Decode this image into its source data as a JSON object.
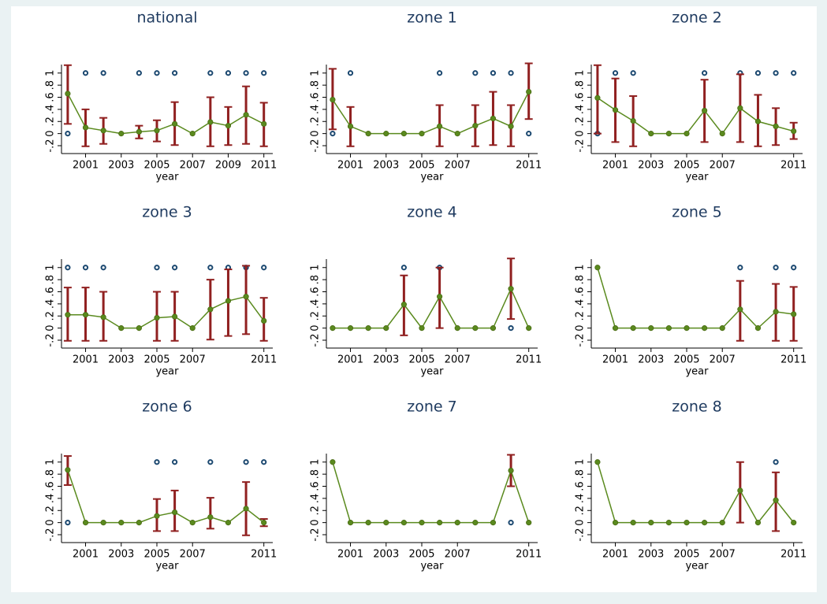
{
  "chart_data": [
    {
      "type": "line",
      "title": "national",
      "x_label": "year",
      "x": [
        2000,
        2001,
        2002,
        2003,
        2004,
        2005,
        2006,
        2007,
        2008,
        2009,
        2010,
        2011
      ],
      "values": [
        0.66,
        0.1,
        0.05,
        0,
        0.03,
        0.05,
        0.16,
        0,
        0.19,
        0.13,
        0.31,
        0.16
      ],
      "ci_lower": [
        0.16,
        -0.21,
        -0.17,
        null,
        -0.08,
        -0.13,
        -0.19,
        null,
        -0.21,
        -0.19,
        -0.17,
        -0.21
      ],
      "ci_upper": [
        1.13,
        0.4,
        0.26,
        null,
        0.13,
        0.22,
        0.52,
        null,
        0.6,
        0.44,
        0.78,
        0.51
      ],
      "points": {
        "x": [
          2000,
          2001,
          2002,
          2004,
          2005,
          2006,
          2008,
          2009,
          2010,
          2011
        ],
        "values": [
          0,
          1,
          1,
          1,
          1,
          1,
          1,
          1,
          1,
          1
        ]
      },
      "xlim": [
        1999.65,
        2011.5
      ],
      "ylim": [
        -0.33,
        1.14
      ],
      "xticks": [
        2001,
        2003,
        2005,
        2007,
        2009,
        2011
      ],
      "yticks": [
        {
          "value": -0.2,
          "label": "-.2"
        },
        0,
        {
          "value": 0.2,
          "label": ".2"
        },
        {
          "value": 0.4,
          "label": ".4"
        },
        {
          "value": 0.6,
          "label": ".6"
        },
        {
          "value": 0.8,
          "label": ".8"
        },
        1
      ],
      "line_color": "#5a8a1e",
      "ci_color": "#902020",
      "point_color": "#1a476f"
    },
    {
      "type": "line",
      "title": "zone 1",
      "x_label": "year",
      "x": [
        2000,
        2001,
        2002,
        2003,
        2004,
        2005,
        2006,
        2007,
        2008,
        2009,
        2010,
        2011
      ],
      "values": [
        0.56,
        0.12,
        0,
        0,
        0,
        0,
        0.12,
        0,
        0.13,
        0.25,
        0.12,
        0.69
      ],
      "ci_lower": [
        0.07,
        -0.21,
        null,
        null,
        null,
        null,
        -0.21,
        null,
        -0.21,
        -0.19,
        -0.21,
        0.24
      ],
      "ci_upper": [
        1.07,
        0.44,
        null,
        null,
        null,
        null,
        0.47,
        null,
        0.47,
        0.69,
        0.47,
        1.16
      ],
      "points": {
        "x": [
          2000,
          2001,
          2006,
          2008,
          2009,
          2010,
          2011
        ],
        "values": [
          0,
          1,
          1,
          1,
          1,
          1,
          0
        ]
      },
      "xlim": [
        1999.65,
        2011.5
      ],
      "ylim": [
        -0.33,
        1.14
      ],
      "xticks": [
        2001,
        2003,
        2005,
        2007,
        2011
      ],
      "yticks": [
        {
          "value": -0.2,
          "label": "-.2"
        },
        0,
        {
          "value": 0.2,
          "label": ".2"
        },
        {
          "value": 0.4,
          "label": ".4"
        },
        {
          "value": 0.6,
          "label": ".6"
        },
        {
          "value": 0.8,
          "label": ".8"
        },
        1
      ],
      "line_color": "#5a8a1e",
      "ci_color": "#902020",
      "point_color": "#1a476f"
    },
    {
      "type": "line",
      "title": "zone 2",
      "x_label": "year",
      "x": [
        2000,
        2001,
        2002,
        2003,
        2004,
        2005,
        2006,
        2007,
        2008,
        2009,
        2010,
        2011
      ],
      "values": [
        0.59,
        0.39,
        0.21,
        0,
        0,
        0,
        0.38,
        0,
        0.42,
        0.2,
        0.12,
        0.04
      ],
      "ci_lower": [
        0,
        -0.14,
        -0.21,
        null,
        null,
        null,
        -0.14,
        null,
        -0.14,
        -0.21,
        -0.19,
        -0.09
      ],
      "ci_upper": [
        1.13,
        0.91,
        0.62,
        null,
        null,
        null,
        0.89,
        null,
        0.98,
        0.64,
        0.42,
        0.18
      ],
      "points": {
        "x": [
          2000,
          2001,
          2002,
          2006,
          2008,
          2009,
          2010,
          2011
        ],
        "values": [
          0,
          1,
          1,
          1,
          1,
          1,
          1,
          1
        ]
      },
      "xlim": [
        1999.65,
        2011.5
      ],
      "ylim": [
        -0.33,
        1.14
      ],
      "xticks": [
        2001,
        2003,
        2005,
        2007,
        2011
      ],
      "yticks": [
        {
          "value": -0.2,
          "label": "-.2"
        },
        0,
        {
          "value": 0.2,
          "label": ".2"
        },
        {
          "value": 0.4,
          "label": ".4"
        },
        {
          "value": 0.6,
          "label": ".6"
        },
        {
          "value": 0.8,
          "label": ".8"
        },
        1
      ],
      "line_color": "#5a8a1e",
      "ci_color": "#902020",
      "point_color": "#1a476f"
    },
    {
      "type": "line",
      "title": "zone 3",
      "x_label": "year",
      "x": [
        2000,
        2001,
        2002,
        2003,
        2004,
        2005,
        2006,
        2007,
        2008,
        2009,
        2010,
        2011
      ],
      "values": [
        0.22,
        0.22,
        0.18,
        0,
        0,
        0.17,
        0.19,
        0,
        0.31,
        0.45,
        0.52,
        0.12
      ],
      "ci_lower": [
        -0.21,
        -0.21,
        -0.21,
        null,
        null,
        -0.21,
        -0.21,
        null,
        -0.19,
        -0.13,
        -0.1,
        -0.21
      ],
      "ci_upper": [
        0.67,
        0.67,
        0.6,
        null,
        null,
        0.6,
        0.6,
        null,
        0.8,
        0.97,
        1.03,
        0.5
      ],
      "points": {
        "x": [
          2000,
          2001,
          2002,
          2005,
          2006,
          2008,
          2009,
          2010,
          2011
        ],
        "values": [
          1,
          1,
          1,
          1,
          1,
          1,
          1,
          1,
          1
        ]
      },
      "xlim": [
        1999.65,
        2011.5
      ],
      "ylim": [
        -0.33,
        1.14
      ],
      "xticks": [
        2001,
        2003,
        2005,
        2007,
        2011
      ],
      "yticks": [
        {
          "value": -0.2,
          "label": "-.2"
        },
        0,
        {
          "value": 0.2,
          "label": ".2"
        },
        {
          "value": 0.4,
          "label": ".4"
        },
        {
          "value": 0.6,
          "label": ".6"
        },
        {
          "value": 0.8,
          "label": ".8"
        },
        1
      ],
      "line_color": "#5a8a1e",
      "ci_color": "#902020",
      "point_color": "#1a476f"
    },
    {
      "type": "line",
      "title": "zone 4",
      "x_label": "year",
      "x": [
        2000,
        2001,
        2002,
        2003,
        2004,
        2005,
        2006,
        2007,
        2008,
        2009,
        2010,
        2011
      ],
      "values": [
        0,
        0,
        0,
        0,
        0.39,
        0,
        0.52,
        0,
        0,
        0,
        0.65,
        0
      ],
      "ci_lower": [
        null,
        null,
        null,
        null,
        -0.12,
        null,
        0,
        null,
        null,
        null,
        0.15,
        null
      ],
      "ci_upper": [
        null,
        null,
        null,
        null,
        0.87,
        null,
        1.0,
        null,
        null,
        null,
        1.15,
        null
      ],
      "points": {
        "x": [
          2004,
          2006,
          2010
        ],
        "values": [
          1,
          1,
          0
        ]
      },
      "xlim": [
        1999.65,
        2011.5
      ],
      "ylim": [
        -0.33,
        1.14
      ],
      "xticks": [
        2001,
        2003,
        2005,
        2007,
        2011
      ],
      "yticks": [
        {
          "value": -0.2,
          "label": "-.2"
        },
        0,
        {
          "value": 0.2,
          "label": ".2"
        },
        {
          "value": 0.4,
          "label": ".4"
        },
        {
          "value": 0.6,
          "label": ".6"
        },
        {
          "value": 0.8,
          "label": ".8"
        },
        1
      ],
      "line_color": "#5a8a1e",
      "ci_color": "#902020",
      "point_color": "#1a476f"
    },
    {
      "type": "line",
      "title": "zone 5",
      "x_label": "year",
      "x": [
        2000,
        2001,
        2002,
        2003,
        2004,
        2005,
        2006,
        2007,
        2008,
        2009,
        2010,
        2011
      ],
      "values": [
        1,
        0,
        0,
        0,
        0,
        0,
        0,
        0,
        0.31,
        0,
        0.27,
        0.23
      ],
      "ci_lower": [
        null,
        null,
        null,
        null,
        null,
        null,
        null,
        null,
        -0.21,
        null,
        -0.21,
        -0.21
      ],
      "ci_upper": [
        null,
        null,
        null,
        null,
        null,
        null,
        null,
        null,
        0.78,
        null,
        0.73,
        0.68
      ],
      "points": {
        "x": [
          2008,
          2010,
          2011
        ],
        "values": [
          1,
          1,
          1
        ]
      },
      "xlim": [
        1999.65,
        2011.5
      ],
      "ylim": [
        -0.33,
        1.14
      ],
      "xticks": [
        2001,
        2003,
        2005,
        2007,
        2011
      ],
      "yticks": [
        {
          "value": -0.2,
          "label": "-.2"
        },
        0,
        {
          "value": 0.2,
          "label": ".2"
        },
        {
          "value": 0.4,
          "label": ".4"
        },
        {
          "value": 0.6,
          "label": ".6"
        },
        {
          "value": 0.8,
          "label": ".8"
        },
        1
      ],
      "line_color": "#5a8a1e",
      "ci_color": "#902020",
      "point_color": "#1a476f"
    },
    {
      "type": "line",
      "title": "zone 6",
      "x_label": "year",
      "x": [
        2000,
        2001,
        2002,
        2003,
        2004,
        2005,
        2006,
        2007,
        2008,
        2009,
        2010,
        2011
      ],
      "values": [
        0.87,
        0,
        0,
        0,
        0,
        0.11,
        0.17,
        0,
        0.09,
        0,
        0.23,
        0
      ],
      "ci_lower": [
        0.62,
        null,
        null,
        null,
        null,
        -0.14,
        -0.14,
        null,
        -0.1,
        null,
        -0.21,
        -0.06
      ],
      "ci_upper": [
        1.1,
        null,
        null,
        null,
        null,
        0.39,
        0.53,
        null,
        0.41,
        null,
        0.67,
        0.06
      ],
      "points": {
        "x": [
          2000,
          2005,
          2006,
          2008,
          2010,
          2011
        ],
        "values": [
          0,
          1,
          1,
          1,
          1,
          1
        ]
      },
      "xlim": [
        1999.65,
        2011.5
      ],
      "ylim": [
        -0.33,
        1.14
      ],
      "xticks": [
        2001,
        2003,
        2005,
        2007,
        2011
      ],
      "yticks": [
        {
          "value": -0.2,
          "label": "-.2"
        },
        0,
        {
          "value": 0.2,
          "label": ".2"
        },
        {
          "value": 0.4,
          "label": ".4"
        },
        {
          "value": 0.6,
          "label": ".6"
        },
        {
          "value": 0.8,
          "label": ".8"
        },
        1
      ],
      "line_color": "#5a8a1e",
      "ci_color": "#902020",
      "point_color": "#1a476f"
    },
    {
      "type": "line",
      "title": "zone 7",
      "x_label": "year",
      "x": [
        2000,
        2001,
        2002,
        2003,
        2004,
        2005,
        2006,
        2007,
        2008,
        2009,
        2010,
        2011
      ],
      "values": [
        1,
        0,
        0,
        0,
        0,
        0,
        0,
        0,
        0,
        0,
        0.86,
        0
      ],
      "ci_lower": [
        null,
        null,
        null,
        null,
        null,
        null,
        null,
        null,
        null,
        null,
        0.6,
        null
      ],
      "ci_upper": [
        null,
        null,
        null,
        null,
        null,
        null,
        null,
        null,
        null,
        null,
        1.12,
        null
      ],
      "points": {
        "x": [
          2010
        ],
        "values": [
          0
        ]
      },
      "xlim": [
        1999.65,
        2011.5
      ],
      "ylim": [
        -0.33,
        1.14
      ],
      "xticks": [
        2001,
        2003,
        2005,
        2007,
        2011
      ],
      "yticks": [
        {
          "value": -0.2,
          "label": "-.2"
        },
        0,
        {
          "value": 0.2,
          "label": ".2"
        },
        {
          "value": 0.4,
          "label": ".4"
        },
        {
          "value": 0.6,
          "label": ".6"
        },
        {
          "value": 0.8,
          "label": ".8"
        },
        1
      ],
      "line_color": "#5a8a1e",
      "ci_color": "#902020",
      "point_color": "#1a476f"
    },
    {
      "type": "line",
      "title": "zone 8",
      "x_label": "year",
      "x": [
        2000,
        2001,
        2002,
        2003,
        2004,
        2005,
        2006,
        2007,
        2008,
        2009,
        2010,
        2011
      ],
      "values": [
        1,
        0,
        0,
        0,
        0,
        0,
        0,
        0,
        0.53,
        0,
        0.37,
        0
      ],
      "ci_lower": [
        null,
        null,
        null,
        null,
        null,
        null,
        null,
        null,
        0,
        null,
        -0.14,
        null
      ],
      "ci_upper": [
        null,
        null,
        null,
        null,
        null,
        null,
        null,
        null,
        1.0,
        null,
        0.83,
        null
      ],
      "points": {
        "x": [
          2010
        ],
        "values": [
          1
        ]
      },
      "xlim": [
        1999.65,
        2011.5
      ],
      "ylim": [
        -0.33,
        1.14
      ],
      "xticks": [
        2001,
        2003,
        2005,
        2007,
        2011
      ],
      "yticks": [
        {
          "value": -0.2,
          "label": "-.2"
        },
        0,
        {
          "value": 0.2,
          "label": ".2"
        },
        {
          "value": 0.4,
          "label": ".4"
        },
        {
          "value": 0.6,
          "label": ".6"
        },
        {
          "value": 0.8,
          "label": ".8"
        },
        1
      ],
      "line_color": "#5a8a1e",
      "ci_color": "#902020",
      "point_color": "#1a476f"
    }
  ]
}
